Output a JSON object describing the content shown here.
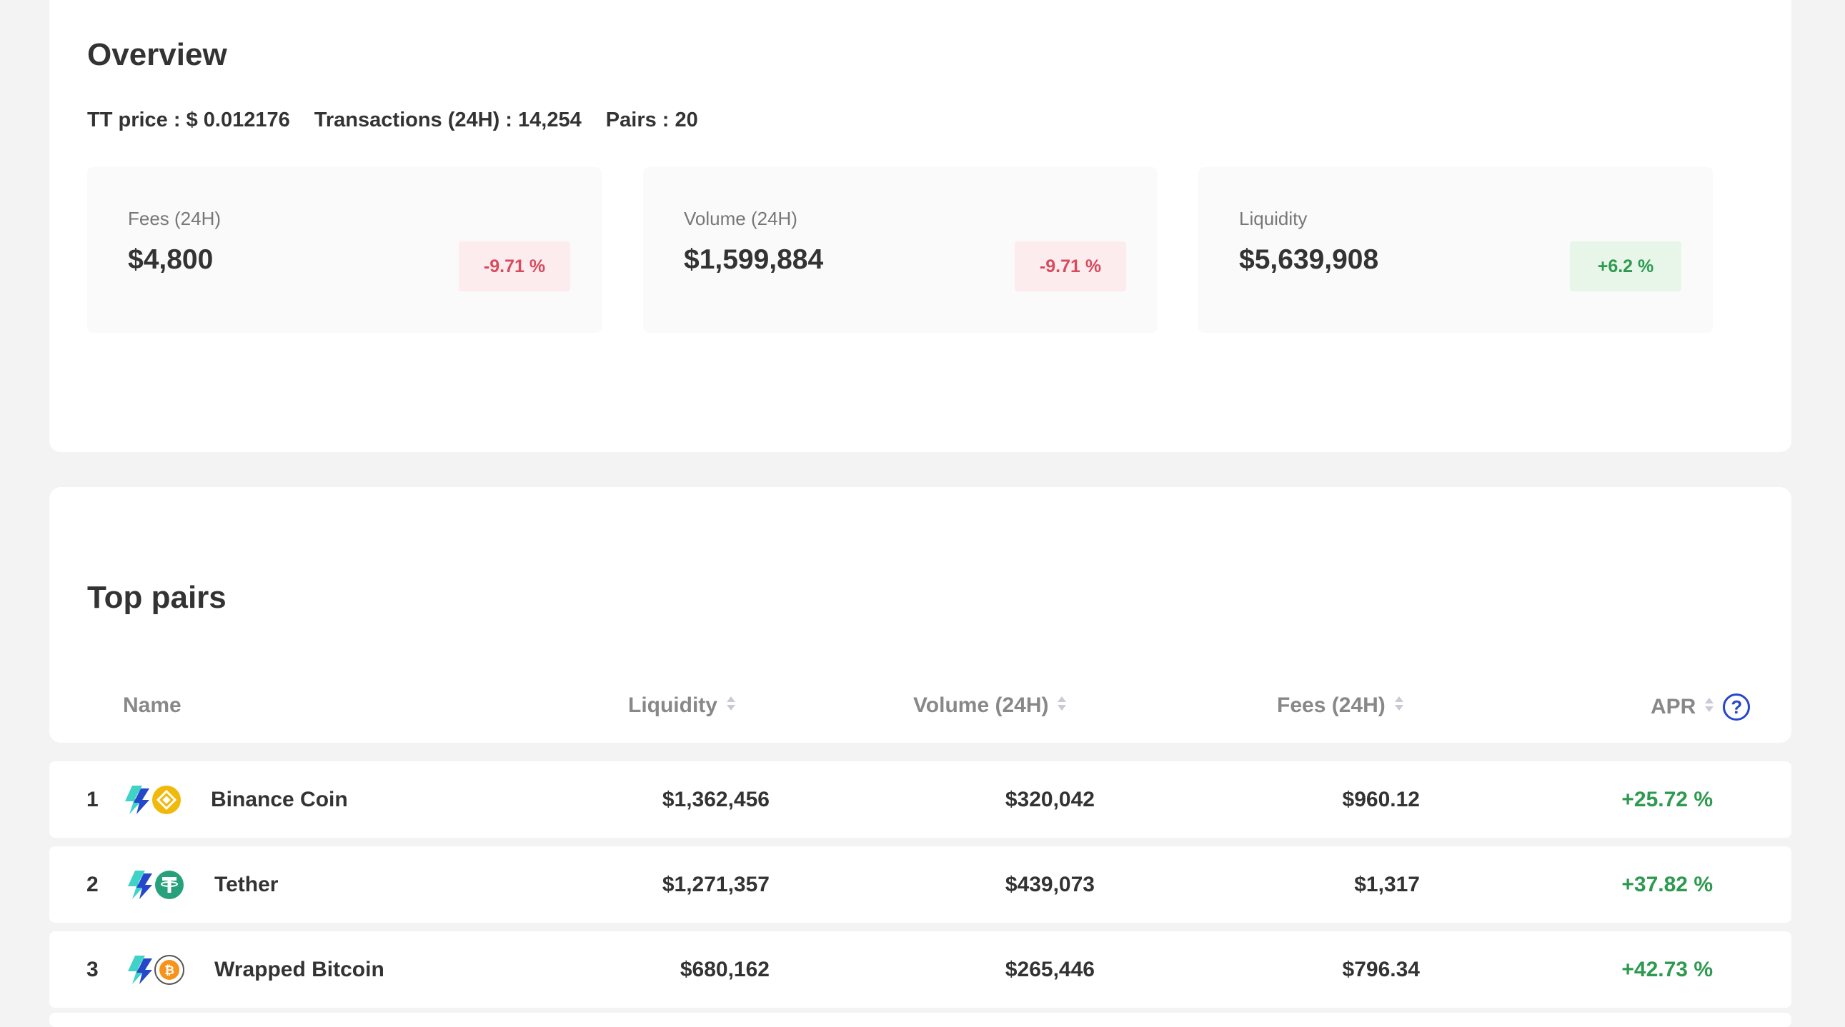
{
  "overview": {
    "title": "Overview",
    "stats": {
      "tt_price": "TT price : $ 0.012176",
      "transactions": "Transactions (24H) : 14,254",
      "pairs": "Pairs : 20"
    },
    "boxes": [
      {
        "label": "Fees (24H)",
        "value": "$4,800",
        "change": "-9.71 %",
        "trend": "negative"
      },
      {
        "label": "Volume (24H)",
        "value": "$1,599,884",
        "change": "-9.71 %",
        "trend": "negative"
      },
      {
        "label": "Liquidity",
        "value": "$5,639,908",
        "change": "+6.2 %",
        "trend": "positive"
      }
    ]
  },
  "top_pairs": {
    "title": "Top pairs",
    "columns": {
      "name": "Name",
      "liquidity": "Liquidity",
      "volume": "Volume (24H)",
      "fees": "Fees (24H)",
      "apr": "APR",
      "apr_help": "?"
    },
    "rows": [
      {
        "rank": "1",
        "name": "Binance Coin",
        "liquidity": "$1,362,456",
        "volume": "$320,042",
        "fees": "$960.12",
        "apr": "+25.72 %",
        "token_icon": "binance-coin-icon"
      },
      {
        "rank": "2",
        "name": "Tether",
        "liquidity": "$1,271,357",
        "volume": "$439,073",
        "fees": "$1,317",
        "apr": "+37.82 %",
        "token_icon": "tether-icon"
      },
      {
        "rank": "3",
        "name": "Wrapped Bitcoin",
        "liquidity": "$680,162",
        "volume": "$265,446",
        "fees": "$796.34",
        "apr": "+42.73 %",
        "token_icon": "bitcoin-icon"
      }
    ]
  },
  "colors": {
    "negative": "#d84a5e",
    "positive": "#2e9a4f",
    "accent": "#2547c9",
    "binance": "#f0b90b",
    "tether": "#26a17b",
    "bitcoin": "#f7931a"
  }
}
